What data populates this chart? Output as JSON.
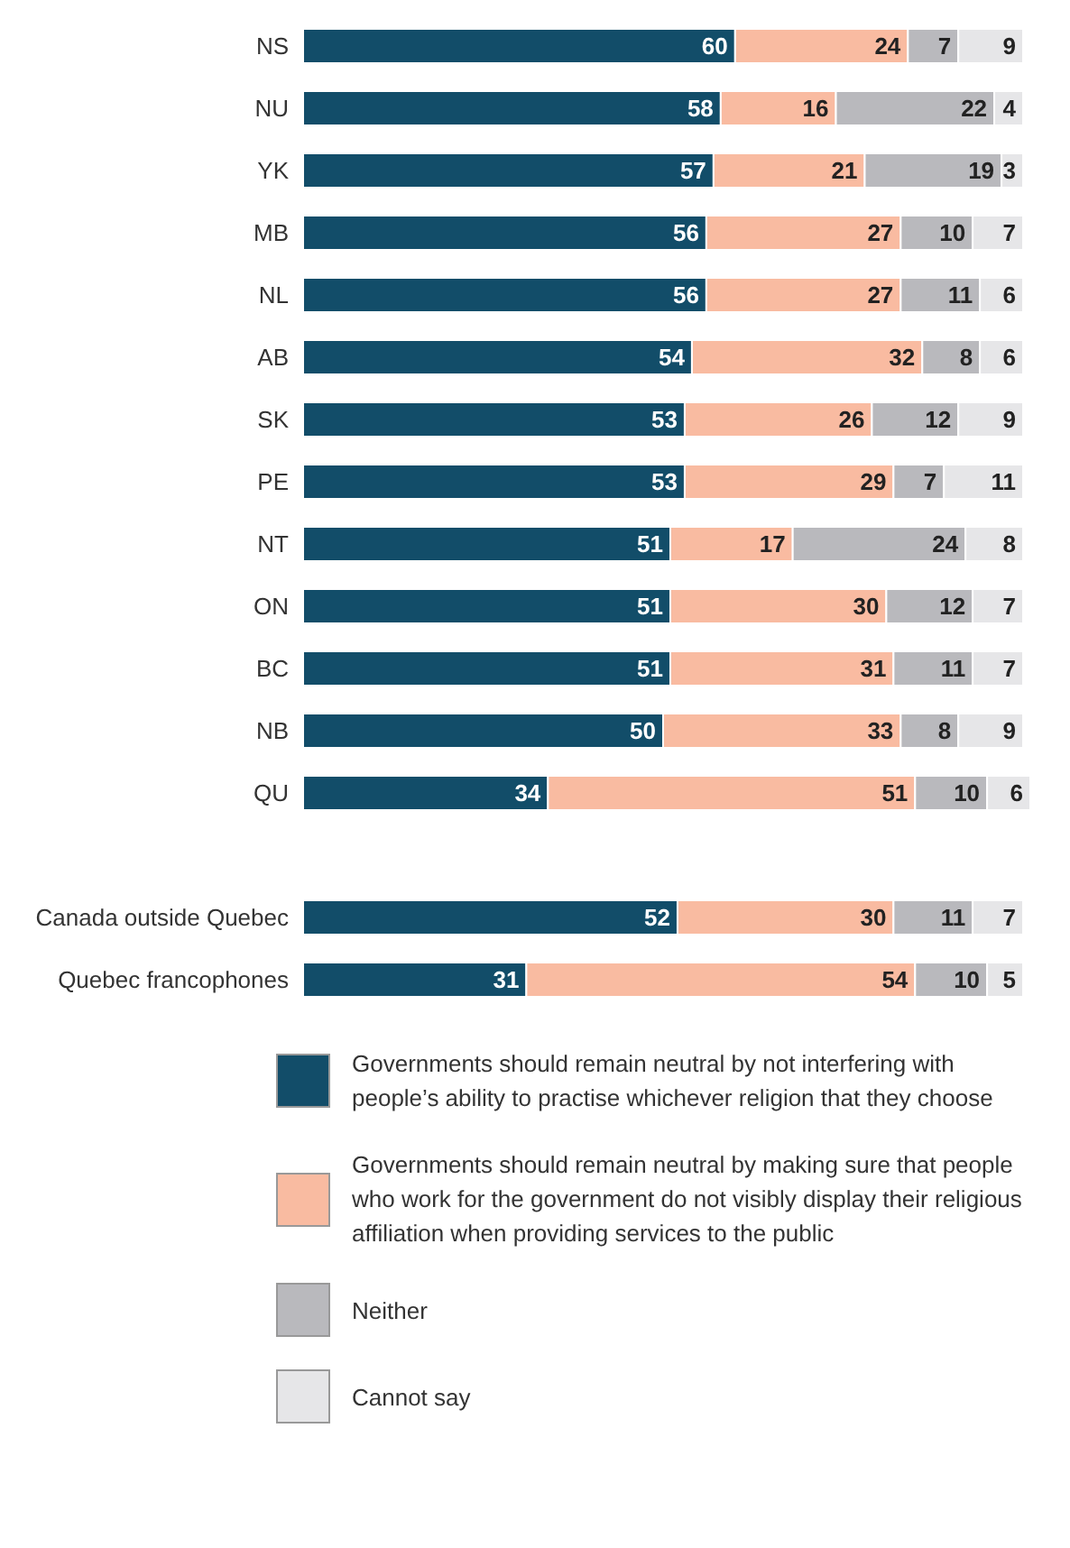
{
  "chart_data": {
    "type": "bar",
    "orientation": "horizontal",
    "stacked": true,
    "data_labels": true,
    "legend": "bottom",
    "categories": [
      "NS",
      "NU",
      "YK",
      "MB",
      "NL",
      "AB",
      "SK",
      "PE",
      "NT",
      "ON",
      "BC",
      "NB",
      "QU",
      null,
      "Canada outside Quebec",
      "Quebec francophones"
    ],
    "series": [
      {
        "name": "Governments should remain neutral by not interfering with people’s ability to practise whichever religion that they choose",
        "color": "#124d69",
        "values": [
          60,
          58,
          57,
          56,
          56,
          54,
          53,
          53,
          51,
          51,
          51,
          50,
          34,
          null,
          52,
          31
        ]
      },
      {
        "name": "Governments should remain neutral by making sure that people who work for the government do not visibly display their religious affiliation when providing services to the public",
        "color": "#f9bba1",
        "values": [
          24,
          16,
          21,
          27,
          27,
          32,
          26,
          29,
          17,
          30,
          31,
          33,
          51,
          null,
          30,
          54
        ]
      },
      {
        "name": "Neither",
        "color": "#b9b9bd",
        "values": [
          7,
          22,
          19,
          10,
          11,
          8,
          12,
          7,
          24,
          12,
          11,
          8,
          10,
          null,
          11,
          10
        ]
      },
      {
        "name": "Cannot say",
        "color": "#e6e6e8",
        "values": [
          9,
          4,
          3,
          7,
          6,
          6,
          9,
          11,
          8,
          7,
          7,
          9,
          6,
          null,
          7,
          5
        ]
      }
    ]
  }
}
